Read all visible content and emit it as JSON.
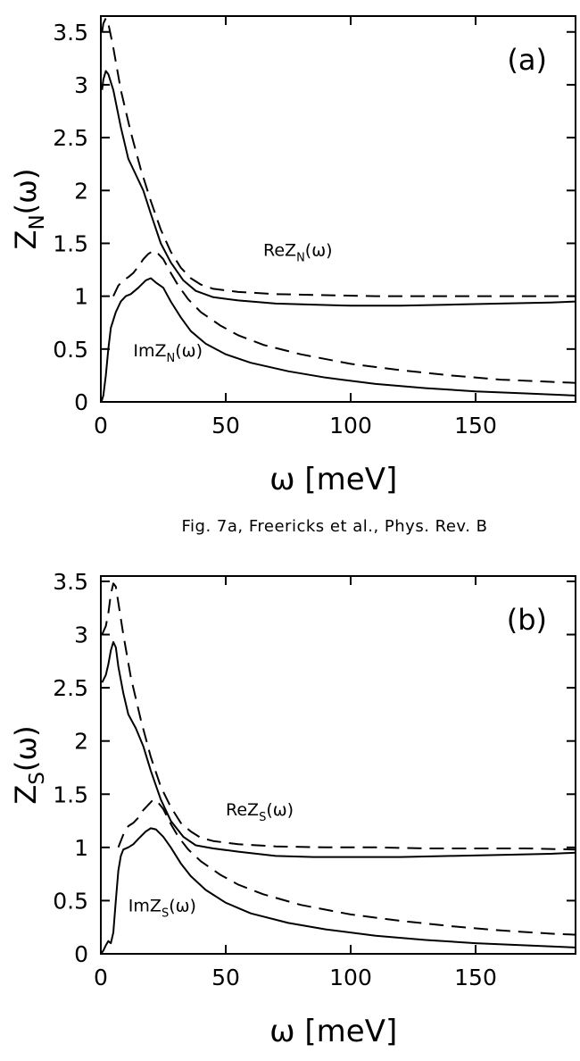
{
  "caption": "Fig. 7a, Freericks et al., Phys. Rev. B",
  "chart_data": [
    {
      "type": "line",
      "panel_label": "(a)",
      "xlabel": "ω [meV]",
      "ylabel_main": "Z",
      "ylabel_sub": "N",
      "ylabel_tail": "(ω)",
      "xlim": [
        0,
        190
      ],
      "ylim": [
        0,
        3.65
      ],
      "xticks": [
        0,
        50,
        100,
        150
      ],
      "yticks": [
        0,
        0.5,
        1,
        1.5,
        2,
        2.5,
        3,
        3.5
      ],
      "ytick_labels": [
        "0",
        "0.5",
        "1",
        "1.5",
        "2",
        "2.5",
        "3",
        "3.5"
      ],
      "annotations": [
        {
          "prefix": "ReZ",
          "sub": "N",
          "suffix": "(ω)",
          "x": 65,
          "y": 1.38
        },
        {
          "prefix": "ImZ",
          "sub": "N",
          "suffix": "(ω)",
          "x": 13,
          "y": 0.43
        }
      ],
      "series": [
        {
          "style": "solid",
          "x": [
            0.5,
            1,
            2,
            3,
            5,
            8,
            11,
            14,
            17,
            20,
            24,
            28,
            33,
            38,
            45,
            55,
            70,
            85,
            100,
            120,
            140,
            160,
            180,
            190
          ],
          "y": [
            2.95,
            3.05,
            3.13,
            3.1,
            2.95,
            2.6,
            2.3,
            2.15,
            2.0,
            1.78,
            1.5,
            1.32,
            1.15,
            1.05,
            0.99,
            0.96,
            0.93,
            0.92,
            0.91,
            0.91,
            0.92,
            0.93,
            0.94,
            0.95
          ]
        },
        {
          "style": "dashed",
          "x": [
            0.5,
            1,
            2,
            3,
            5,
            8,
            12,
            16,
            20,
            24,
            28,
            32,
            36,
            40,
            45,
            55,
            70,
            90,
            110,
            130,
            150,
            170,
            190
          ],
          "y": [
            3.5,
            3.58,
            3.63,
            3.58,
            3.35,
            2.95,
            2.55,
            2.2,
            1.9,
            1.63,
            1.42,
            1.27,
            1.17,
            1.11,
            1.07,
            1.04,
            1.02,
            1.01,
            1.0,
            1.0,
            1.0,
            1.0,
            1.0
          ]
        },
        {
          "style": "solid",
          "x": [
            0,
            0.5,
            1,
            2,
            3,
            4,
            6,
            8,
            10,
            12,
            15,
            18,
            20,
            22,
            25,
            28,
            32,
            36,
            42,
            50,
            60,
            75,
            90,
            110,
            130,
            150,
            170,
            190
          ],
          "y": [
            0,
            0.02,
            0.06,
            0.25,
            0.5,
            0.7,
            0.85,
            0.95,
            1.0,
            1.02,
            1.08,
            1.15,
            1.17,
            1.13,
            1.08,
            0.95,
            0.8,
            0.67,
            0.55,
            0.45,
            0.37,
            0.29,
            0.23,
            0.17,
            0.13,
            0.1,
            0.08,
            0.06
          ]
        },
        {
          "style": "dashed",
          "x": [
            5,
            7,
            9,
            11,
            13,
            15,
            17,
            19,
            21,
            23,
            25,
            28,
            31,
            35,
            40,
            48,
            55,
            65,
            80,
            100,
            120,
            140,
            160,
            180,
            190
          ],
          "y": [
            1.0,
            1.1,
            1.15,
            1.18,
            1.22,
            1.28,
            1.35,
            1.4,
            1.43,
            1.4,
            1.35,
            1.22,
            1.1,
            0.97,
            0.85,
            0.72,
            0.63,
            0.54,
            0.45,
            0.36,
            0.3,
            0.25,
            0.21,
            0.19,
            0.18
          ]
        }
      ]
    },
    {
      "type": "line",
      "panel_label": "(b)",
      "xlabel": "ω [meV]",
      "ylabel_main": "Z",
      "ylabel_sub": "S",
      "ylabel_tail": "(ω)",
      "xlim": [
        0,
        190
      ],
      "ylim": [
        0,
        3.55
      ],
      "xticks": [
        0,
        50,
        100,
        150
      ],
      "yticks": [
        0,
        0.5,
        1,
        1.5,
        2,
        2.5,
        3,
        3.5
      ],
      "ytick_labels": [
        "0",
        "0.5",
        "1",
        "1.5",
        "2",
        "2.5",
        "3",
        "3.5"
      ],
      "annotations": [
        {
          "prefix": "ReZ",
          "sub": "S",
          "suffix": "(ω)",
          "x": 50,
          "y": 1.3
        },
        {
          "prefix": "ImZ",
          "sub": "S",
          "suffix": "(ω)",
          "x": 11,
          "y": 0.4
        }
      ],
      "series": [
        {
          "style": "solid",
          "x": [
            0.5,
            2,
            3,
            4,
            5,
            6,
            7,
            9,
            11,
            14,
            17,
            20,
            24,
            28,
            33,
            38,
            45,
            55,
            70,
            85,
            100,
            120,
            140,
            160,
            180,
            190
          ],
          "y": [
            2.55,
            2.62,
            2.72,
            2.85,
            2.93,
            2.88,
            2.7,
            2.45,
            2.25,
            2.12,
            1.95,
            1.72,
            1.45,
            1.25,
            1.1,
            1.02,
            0.99,
            0.96,
            0.92,
            0.91,
            0.91,
            0.91,
            0.92,
            0.93,
            0.94,
            0.95
          ]
        },
        {
          "style": "dashed",
          "x": [
            0.5,
            2,
            3,
            4,
            5,
            6,
            7,
            9,
            12,
            16,
            20,
            24,
            28,
            32,
            36,
            40,
            45,
            55,
            70,
            90,
            110,
            130,
            150,
            170,
            190
          ],
          "y": [
            3.0,
            3.08,
            3.2,
            3.38,
            3.48,
            3.45,
            3.3,
            3.0,
            2.6,
            2.2,
            1.85,
            1.57,
            1.38,
            1.23,
            1.15,
            1.09,
            1.06,
            1.03,
            1.01,
            1.0,
            1.0,
            0.99,
            0.99,
            0.99,
            0.98
          ]
        },
        {
          "style": "solid",
          "x": [
            0,
            1,
            2,
            3,
            4,
            5,
            6,
            7,
            8,
            9,
            11,
            13,
            15,
            18,
            20,
            22,
            25,
            28,
            32,
            36,
            42,
            50,
            60,
            75,
            90,
            110,
            130,
            150,
            170,
            190
          ],
          "y": [
            0,
            0.03,
            0.08,
            0.12,
            0.1,
            0.2,
            0.5,
            0.78,
            0.92,
            0.98,
            1.0,
            1.03,
            1.08,
            1.15,
            1.18,
            1.17,
            1.1,
            1.0,
            0.85,
            0.73,
            0.6,
            0.48,
            0.38,
            0.29,
            0.23,
            0.17,
            0.13,
            0.1,
            0.08,
            0.06
          ]
        },
        {
          "style": "dashed",
          "x": [
            7,
            9,
            11,
            13,
            15,
            17,
            19,
            21,
            23,
            25,
            28,
            31,
            35,
            40,
            48,
            55,
            65,
            80,
            100,
            120,
            140,
            160,
            180,
            190
          ],
          "y": [
            1.0,
            1.12,
            1.2,
            1.23,
            1.28,
            1.35,
            1.4,
            1.45,
            1.42,
            1.36,
            1.22,
            1.1,
            0.98,
            0.87,
            0.74,
            0.65,
            0.56,
            0.46,
            0.37,
            0.31,
            0.26,
            0.22,
            0.19,
            0.18
          ]
        }
      ]
    }
  ]
}
